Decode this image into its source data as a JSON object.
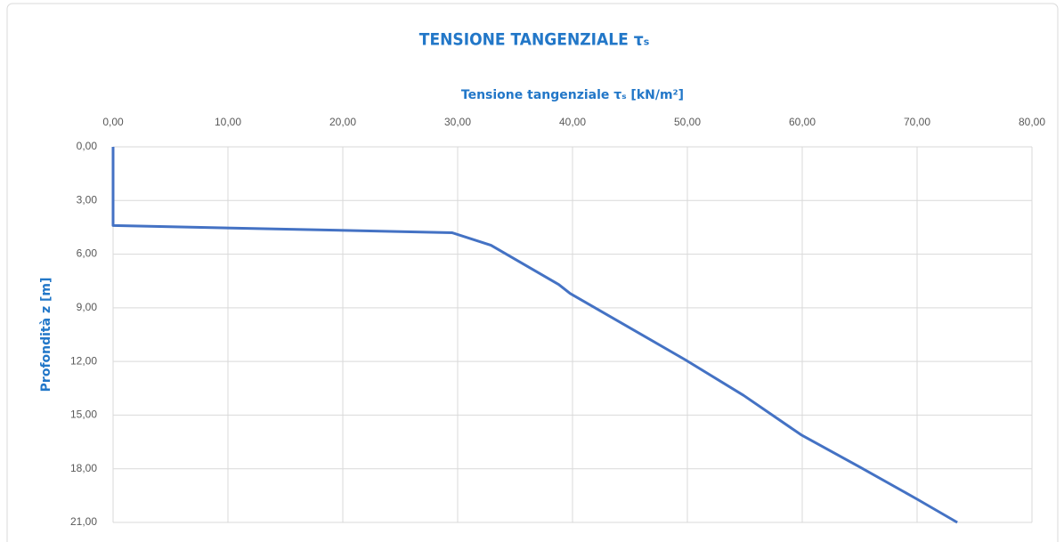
{
  "chart_data": {
    "type": "line",
    "title": "TENSIONE TANGENZIALE τₛ",
    "x_label": "Tensione tangenziale τₛ [kN/m²]",
    "y_label": "Profondità z [m]",
    "x": [
      0,
      0,
      29.5,
      32.9,
      38.8,
      39.8,
      49.8,
      54.9,
      59.9,
      65,
      70,
      73.5
    ],
    "values": [
      0,
      4.4,
      4.8,
      5.5,
      7.7,
      8.2,
      11.9,
      13.9,
      16.1,
      17.9,
      19.7,
      21
    ],
    "color": "#4472c4",
    "xlim": [
      0,
      80
    ],
    "xticks": [
      {
        "value": 0,
        "label": "0,00"
      },
      {
        "value": 10,
        "label": "10,00"
      },
      {
        "value": 20,
        "label": "20,00"
      },
      {
        "value": 30,
        "label": "30,00"
      },
      {
        "value": 40,
        "label": "40,00"
      },
      {
        "value": 50,
        "label": "50,00"
      },
      {
        "value": 60,
        "label": "60,00"
      },
      {
        "value": 70,
        "label": "70,00"
      },
      {
        "value": 80,
        "label": "80,00"
      }
    ],
    "ylim": [
      0,
      21
    ],
    "yticks": [
      {
        "value": 0,
        "label": "0,00"
      },
      {
        "value": 3,
        "label": "3,00"
      },
      {
        "value": 6,
        "label": "6,00"
      },
      {
        "value": 9,
        "label": "9,00"
      },
      {
        "value": 12,
        "label": "12,00"
      },
      {
        "value": 15,
        "label": "15,00"
      },
      {
        "value": 18,
        "label": "18,00"
      },
      {
        "value": 21,
        "label": "21,00"
      }
    ],
    "y_inverted": true,
    "x_axis_position": "top",
    "grid": true
  }
}
